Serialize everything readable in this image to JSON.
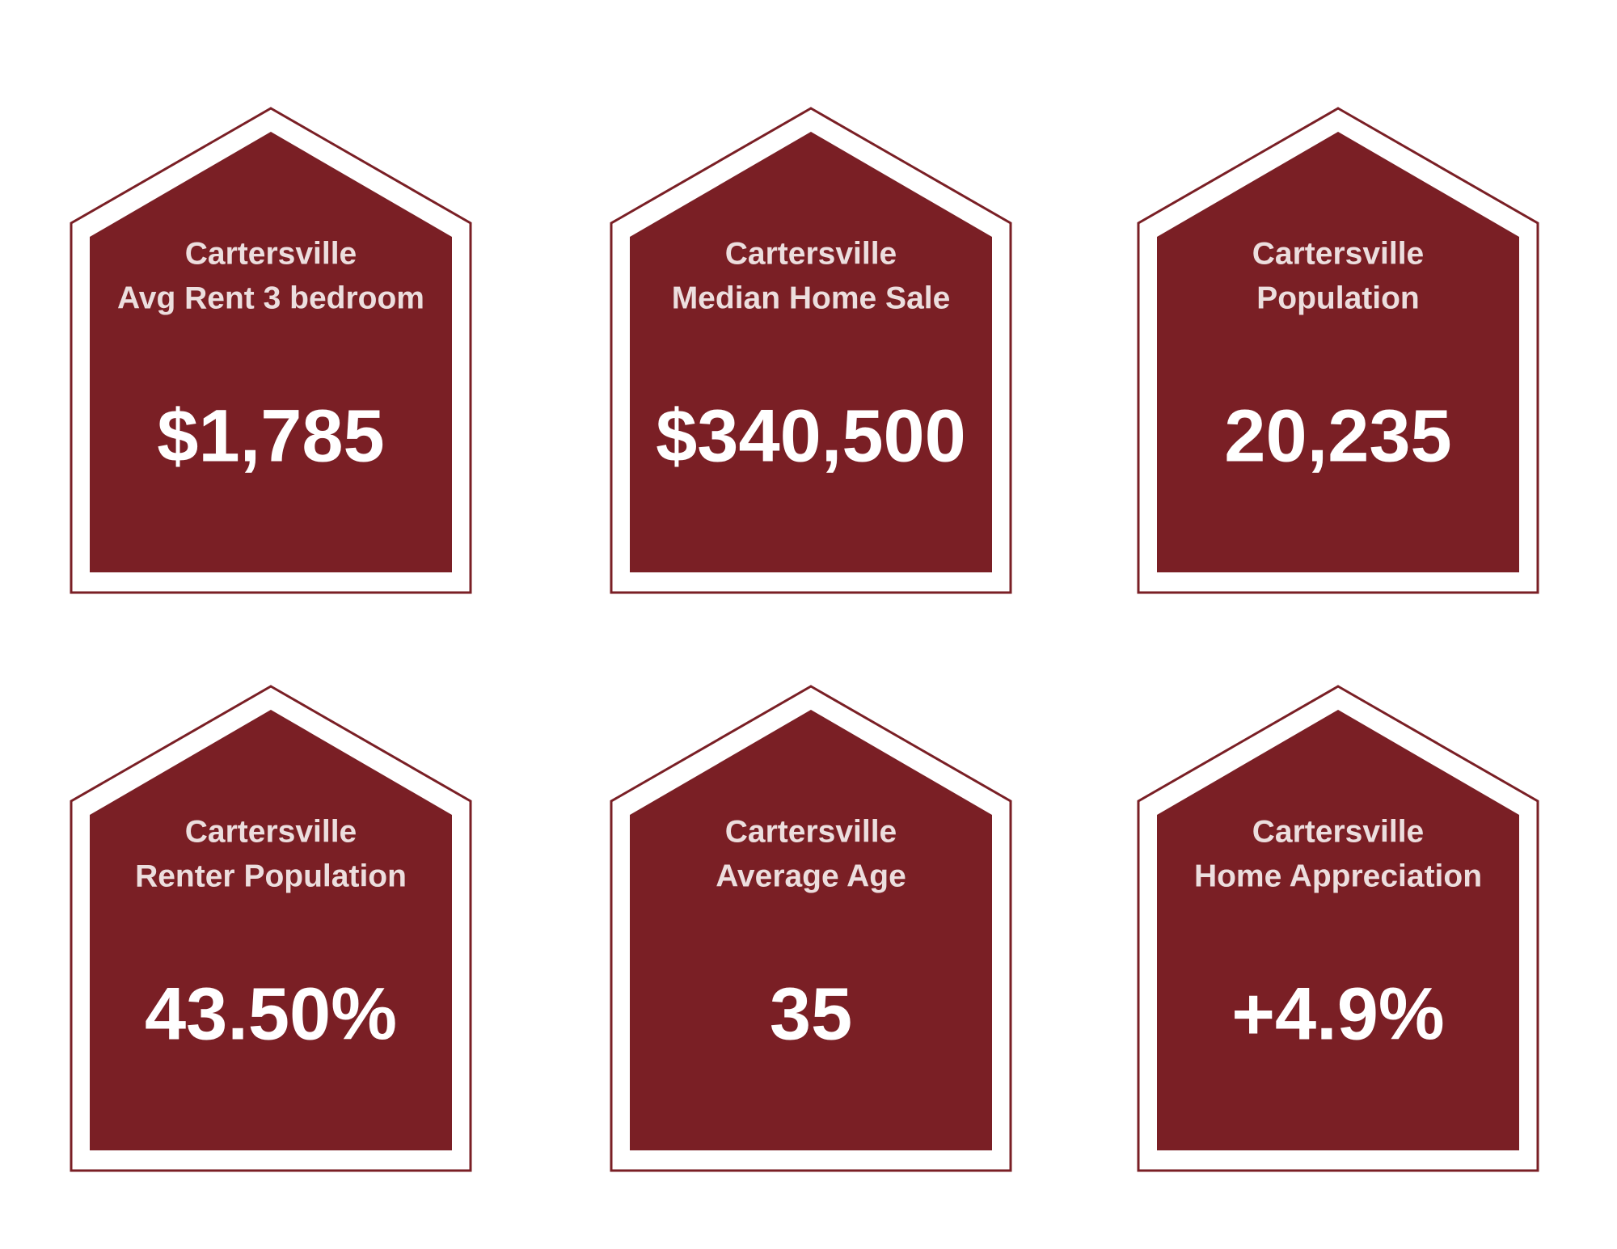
{
  "cards": [
    {
      "city": "Cartersville",
      "label": "Avg Rent 3 bedroom",
      "value": "$1,785"
    },
    {
      "city": "Cartersville",
      "label": "Median Home Sale",
      "value": "$340,500"
    },
    {
      "city": "Cartersville",
      "label": "Population",
      "value": "20,235"
    },
    {
      "city": "Cartersville",
      "label": "Renter Population",
      "value": "43.50%"
    },
    {
      "city": "Cartersville",
      "label": "Average Age",
      "value": "35"
    },
    {
      "city": "Cartersville",
      "label": "Home Appreciation",
      "value": "+4.9%"
    }
  ]
}
